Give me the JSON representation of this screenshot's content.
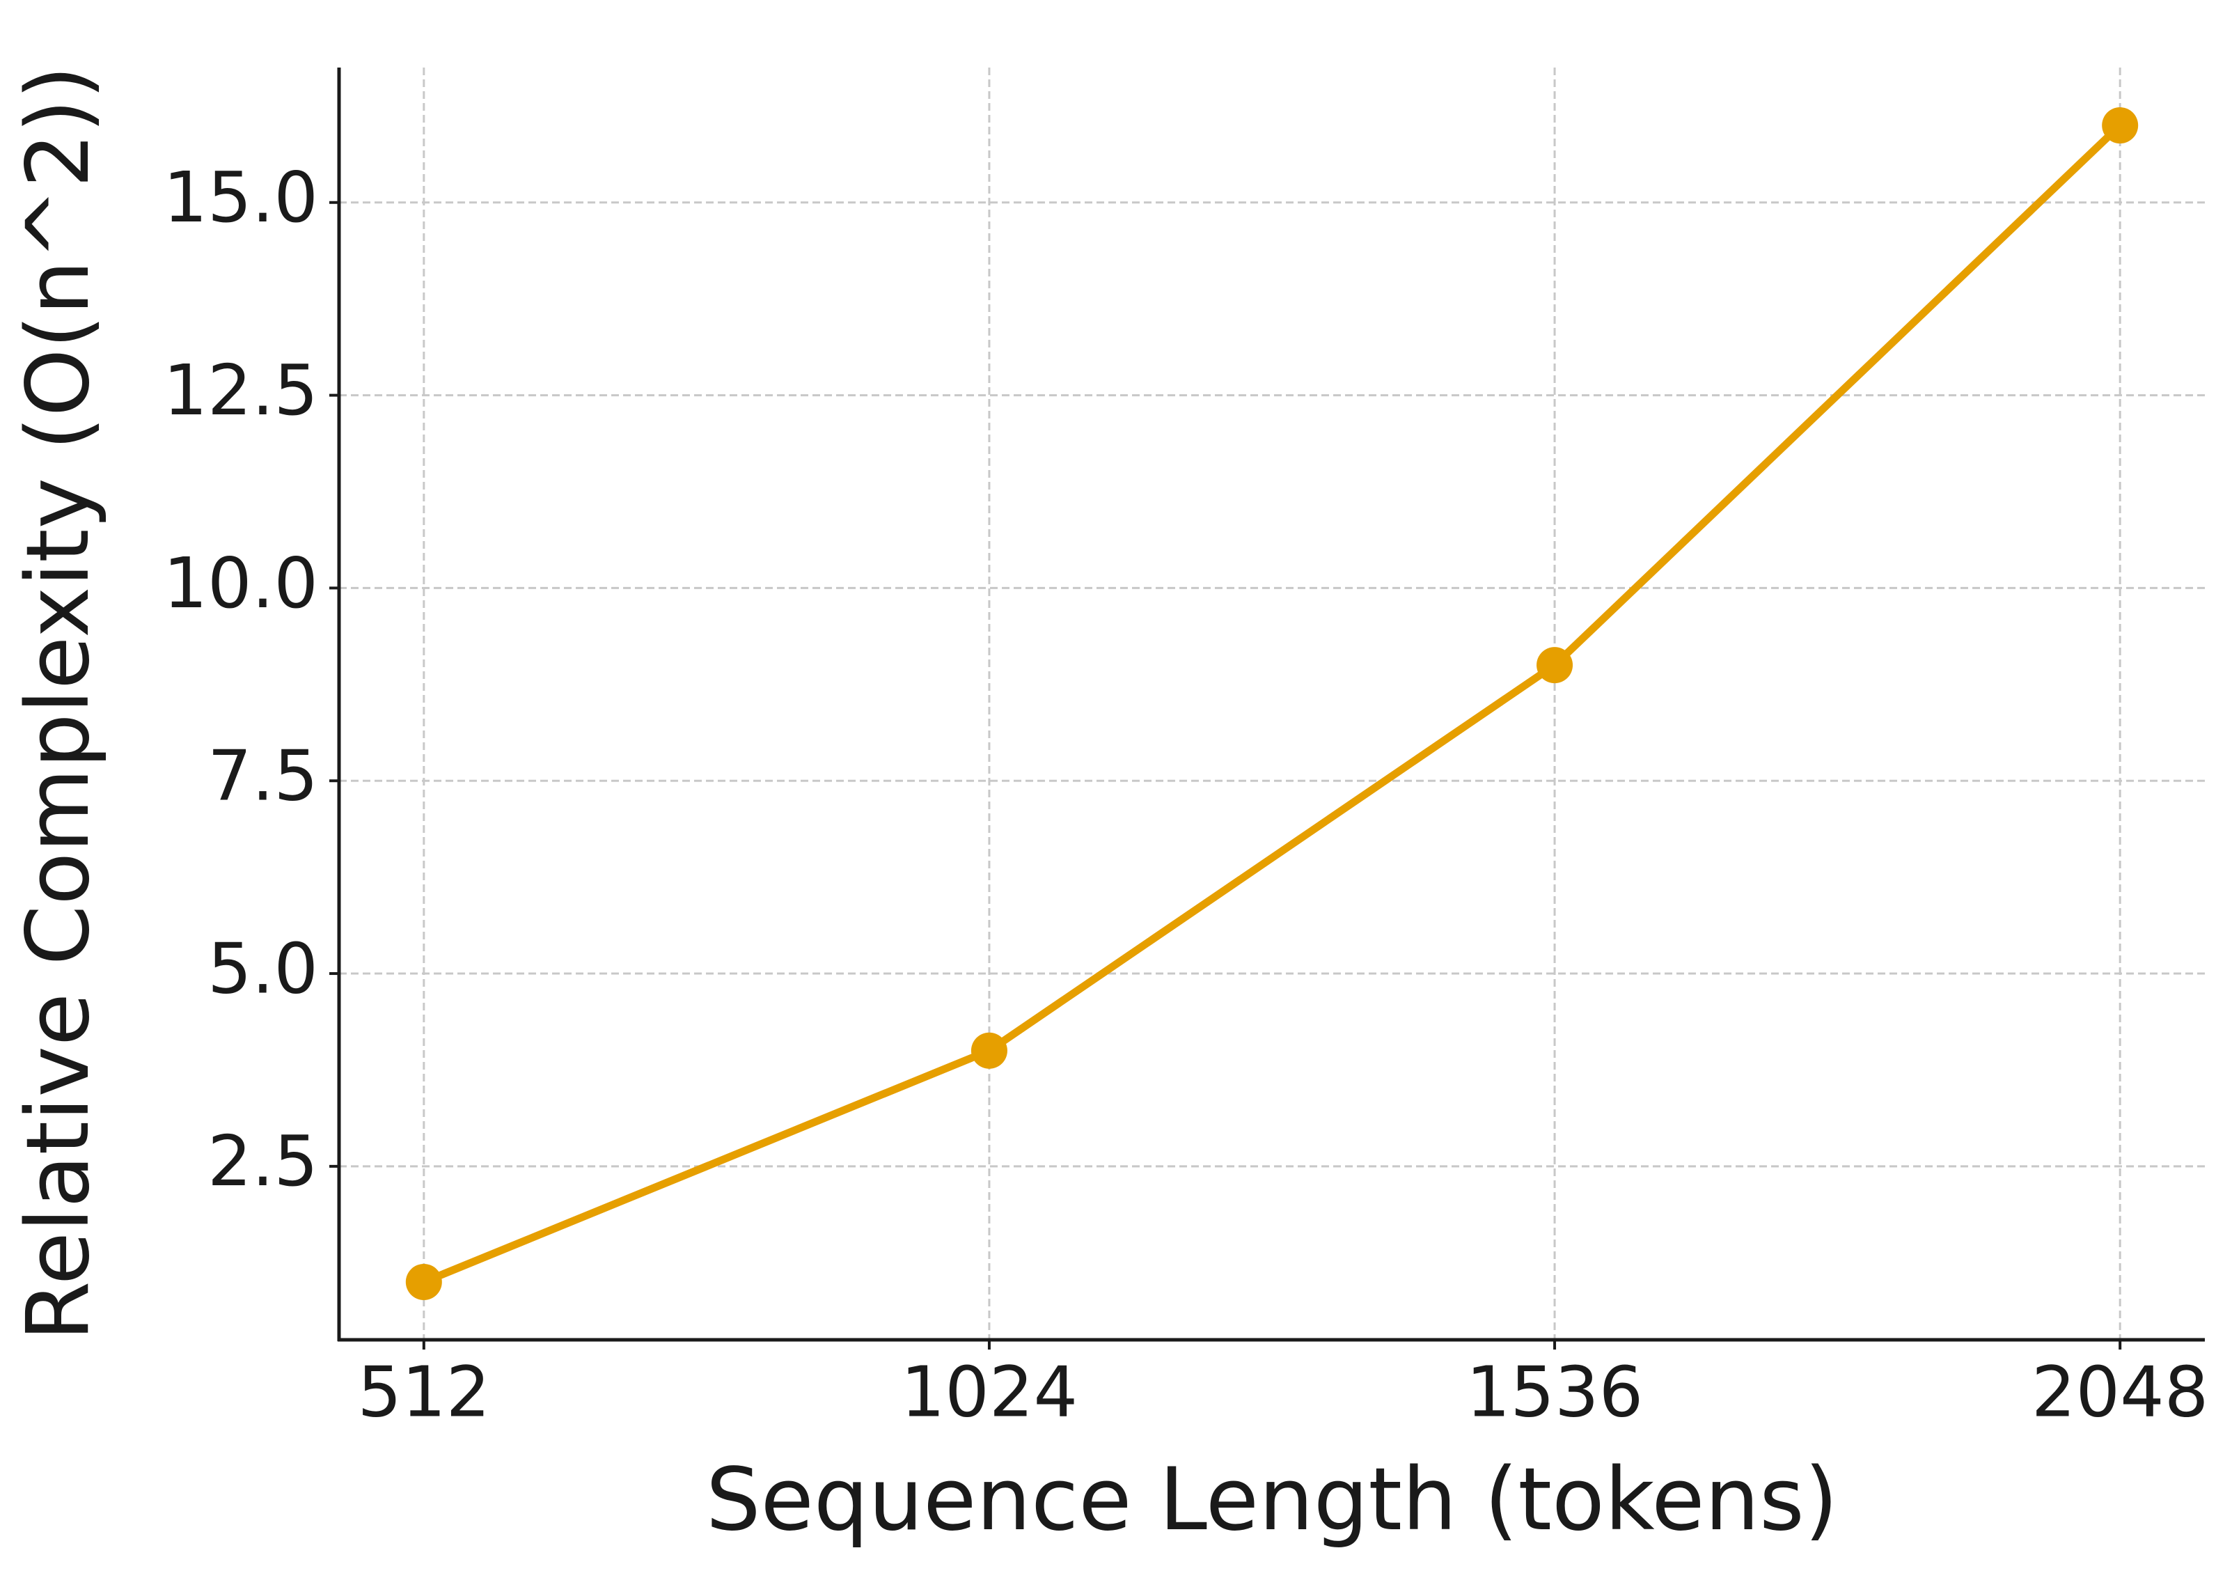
{
  "chart_data": {
    "type": "line",
    "x_label": "Sequence Length (tokens)",
    "y_label": "Relative Complexity (O(n^2))",
    "x": [
      512,
      1024,
      1536,
      2048
    ],
    "values": [
      1,
      4,
      9,
      16
    ],
    "color": "#e69f00",
    "xlim": [
      435.2,
      2124.8
    ],
    "ylim": [
      0.25,
      16.75
    ],
    "xticks": [
      512,
      1024,
      1536,
      2048
    ],
    "yticks": [
      {
        "value": 2.5,
        "label": "2.5"
      },
      {
        "value": 5,
        "label": "5.0"
      },
      {
        "value": 7.5,
        "label": "7.5"
      },
      {
        "value": 10,
        "label": "10.0"
      },
      {
        "value": 12.5,
        "label": "12.5"
      },
      {
        "value": 15,
        "label": "15.0"
      }
    ],
    "grid": true
  }
}
